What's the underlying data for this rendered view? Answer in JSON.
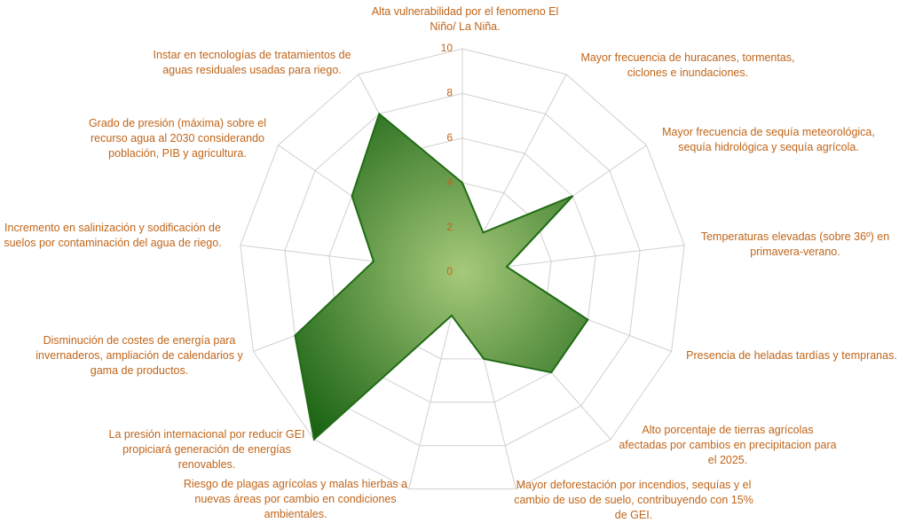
{
  "chart_data": {
    "type": "radar",
    "categories": [
      "Alta vulnerabilidad por el fenomeno El Niño/ La Niña.",
      "Mayor frecuencia de huracanes, tormentas, ciclones e inundaciones.",
      "Mayor frecuencia de sequía meteorológica, sequía hidrológica y sequía agrícola.",
      "Temperaturas elevadas (sobre 36º) en primavera-verano.",
      "Presencia de heladas tardías y tempranas.",
      "Alto porcentaje de tierras agrícolas afectadas por cambios en precipitacion para el 2025.",
      "Mayor deforestación por incendios, sequías y el cambio de uso de suelo, contribuyendo con 15% de GEI.",
      "Riesgo de plagas agrícolas y malas hierbas a nuevas áreas por cambio en condiciones ambientales.",
      "La presión internacional por reducir GEI propiciará generación de energías renovables.",
      "Disminución de costes de energía para invernaderos, ampliación de calendarios y gama de productos.",
      "Incremento en salinización y sodificación de suelos por contaminación del agua de riego.",
      "Grado de presión (máxima) sobre el recurso agua al 2030 considerando población, PIB y agricultura.",
      "Instar en tecnologías de tratamientos de aguas residuales usadas para riego."
    ],
    "values": [
      4,
      2,
      6,
      2,
      6,
      6,
      4,
      2,
      10,
      8,
      4,
      6,
      8
    ],
    "color": "#1f6b14",
    "ylim": [
      0,
      10
    ],
    "yticks": [
      0,
      2,
      4,
      6,
      8,
      10
    ],
    "grid": true
  }
}
